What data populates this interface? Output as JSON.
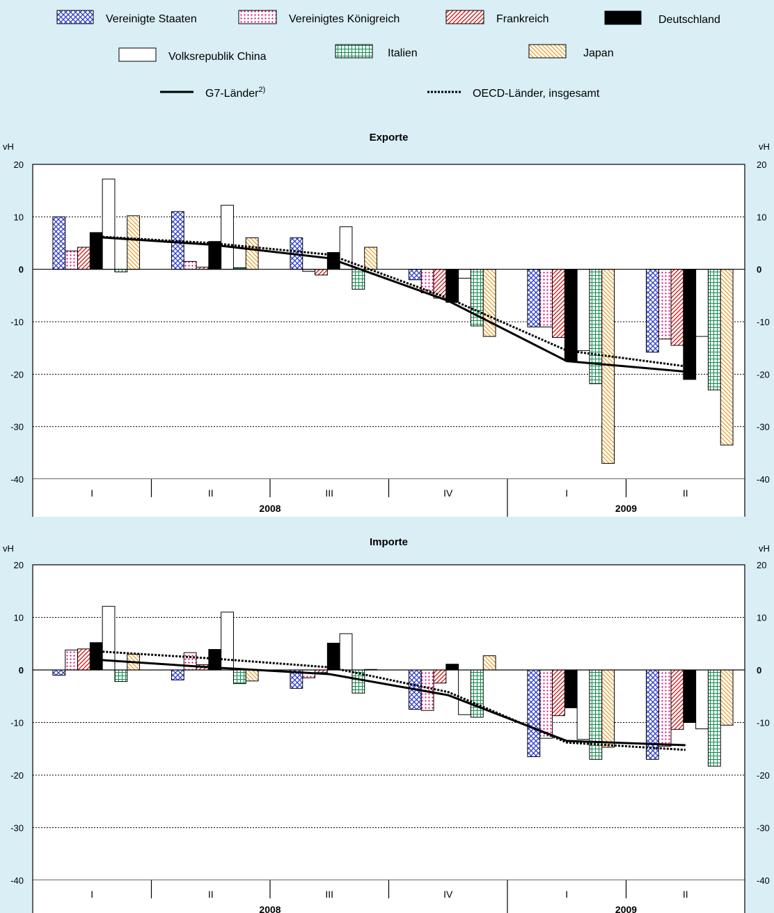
{
  "legend": {
    "countries": [
      "Vereinigte Staaten",
      "Vereinigtes Königreich",
      "Frankreich",
      "Deutschland",
      "Volksrepublik China",
      "Italien",
      "Japan"
    ],
    "g7_label": "G7-Länder",
    "g7_sup": "2)",
    "oecd_label": "OECD-Länder, insgesamt"
  },
  "chart_data": [
    {
      "type": "bar",
      "title": "Exporte",
      "ylabel": "vH",
      "ylim": [
        -40,
        20
      ],
      "yticks": [
        -40,
        -30,
        -20,
        -10,
        0,
        10,
        20
      ],
      "categories": [
        "I",
        "II",
        "III",
        "IV",
        "I",
        "II"
      ],
      "years": [
        {
          "label": "2008",
          "from": 0,
          "to": 3
        },
        {
          "label": "2009",
          "from": 4,
          "to": 5
        }
      ],
      "grid": true,
      "series": [
        {
          "name": "Vereinigte Staaten",
          "pattern": "cross",
          "color": "#2a3bcc",
          "values": [
            10,
            11,
            6,
            -2,
            -11,
            -15.8
          ]
        },
        {
          "name": "Vereinigtes Königreich",
          "pattern": "dots",
          "color": "#e0006c",
          "values": [
            3.5,
            1.5,
            -0.4,
            -4.5,
            -11,
            -13.3
          ]
        },
        {
          "name": "Frankreich",
          "pattern": "diag",
          "color": "#d40000",
          "values": [
            4.2,
            0.4,
            -1.1,
            -5.5,
            -13,
            -14.5
          ]
        },
        {
          "name": "Deutschland",
          "pattern": "solid",
          "color": "#000000",
          "values": [
            7,
            5.3,
            3.2,
            -6.3,
            -17.5,
            -21
          ]
        },
        {
          "name": "Volksrepublik China",
          "pattern": "none",
          "color": "#000000",
          "values": [
            17.2,
            12.2,
            8.1,
            -1.7,
            -15.5,
            -12.8
          ]
        },
        {
          "name": "Italien",
          "pattern": "grid",
          "color": "#0a8a4a",
          "values": [
            -0.5,
            0.3,
            -3.8,
            -10.8,
            -21.8,
            -23
          ]
        },
        {
          "name": "Japan",
          "pattern": "diag2",
          "color": "#e89a20",
          "values": [
            10.2,
            6,
            4.2,
            -12.8,
            -37,
            -33.5
          ]
        }
      ],
      "lines": [
        {
          "name": "G7-Länder",
          "style": "solid",
          "values": [
            6.2,
            4.7,
            2.1,
            -6,
            -17.5,
            -19.5
          ]
        },
        {
          "name": "OECD-Länder, insgesamt",
          "style": "dotted",
          "values": [
            6.3,
            5.0,
            2.8,
            -5.5,
            -15.5,
            -18.5
          ]
        }
      ]
    },
    {
      "type": "bar",
      "title": "Importe",
      "ylabel": "vH",
      "ylim": [
        -40,
        20
      ],
      "yticks": [
        -40,
        -30,
        -20,
        -10,
        0,
        10,
        20
      ],
      "categories": [
        "I",
        "II",
        "III",
        "IV",
        "I",
        "II"
      ],
      "years": [
        {
          "label": "2008",
          "from": 0,
          "to": 3
        },
        {
          "label": "2009",
          "from": 4,
          "to": 5
        }
      ],
      "grid": true,
      "series": [
        {
          "name": "Vereinigte Staaten",
          "pattern": "cross",
          "color": "#2a3bcc",
          "values": [
            -1,
            -1.9,
            -3.5,
            -7.5,
            -16.5,
            -17
          ]
        },
        {
          "name": "Vereinigtes Königreich",
          "pattern": "dots",
          "color": "#e0006c",
          "values": [
            3.8,
            3.3,
            -1.5,
            -7.7,
            -13,
            -14.5
          ]
        },
        {
          "name": "Frankreich",
          "pattern": "diag",
          "color": "#d40000",
          "values": [
            4,
            1,
            -0.5,
            -2.5,
            -8.7,
            -11.3
          ]
        },
        {
          "name": "Deutschland",
          "pattern": "solid",
          "color": "#000000",
          "values": [
            5.2,
            3.9,
            5.1,
            1.1,
            -7.2,
            -10
          ]
        },
        {
          "name": "Volksrepublik China",
          "pattern": "none",
          "color": "#000000",
          "values": [
            12.1,
            11,
            6.9,
            -8.5,
            -13.2,
            -11.2
          ]
        },
        {
          "name": "Italien",
          "pattern": "grid",
          "color": "#0a8a4a",
          "values": [
            -2.2,
            -2.6,
            -4.4,
            -9,
            -17,
            -18.3
          ]
        },
        {
          "name": "Japan",
          "pattern": "diag2",
          "color": "#e89a20",
          "values": [
            3,
            -2.1,
            0.1,
            2.7,
            -14.7,
            -10.5
          ]
        }
      ],
      "lines": [
        {
          "name": "G7-Länder",
          "style": "solid",
          "values": [
            2,
            0.5,
            -0.8,
            -4.8,
            -13.5,
            -14.3
          ]
        },
        {
          "name": "OECD-Länder, insgesamt",
          "style": "dotted",
          "values": [
            3.6,
            2.2,
            0.5,
            -4.2,
            -13.8,
            -15.2
          ]
        }
      ]
    }
  ]
}
